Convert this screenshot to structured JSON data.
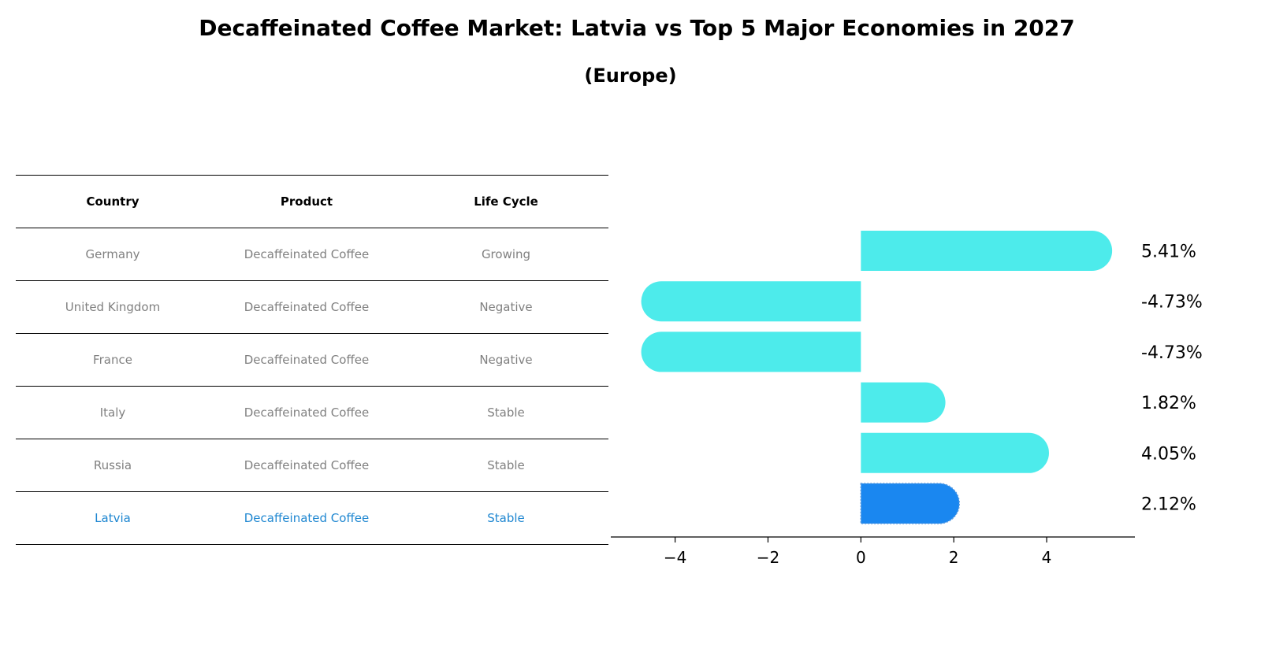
{
  "title": "Decaffeinated Coffee Market: Latvia vs Top 5 Major Economies in 2027",
  "subtitle": "(Europe)",
  "table": {
    "headers": [
      "Country",
      "Product",
      "Life Cycle"
    ],
    "rows": [
      [
        "Germany",
        "Decaffeinated Coffee",
        "Growing"
      ],
      [
        "United Kingdom",
        "Decaffeinated Coffee",
        "Negative"
      ],
      [
        "France",
        "Decaffeinated Coffee",
        "Negative"
      ],
      [
        "Italy",
        "Decaffeinated Coffee",
        "Stable"
      ],
      [
        "Russia",
        "Decaffeinated Coffee",
        "Stable"
      ],
      [
        "Latvia",
        "Decaffeinated Coffee",
        "Stable"
      ]
    ],
    "highlight_row": 5,
    "text_color": "#808080",
    "highlight_color": "#1f87d1"
  },
  "chart_data": {
    "type": "bar",
    "orientation": "horizontal",
    "categories": [
      "Germany",
      "United Kingdom",
      "France",
      "Italy",
      "Russia",
      "Latvia"
    ],
    "values": [
      5.41,
      -4.73,
      -4.73,
      1.82,
      4.05,
      2.12
    ],
    "labels": [
      "5.41%",
      "-4.73%",
      "-4.73%",
      "1.82%",
      "4.05%",
      "2.12%"
    ],
    "highlight_index": 5,
    "colors": {
      "default": "#4debeb",
      "highlight": "#1a87f0"
    },
    "xlim": [
      -5.3,
      5.9
    ],
    "xticks": [
      -4,
      -2,
      0,
      2,
      4
    ],
    "xtick_labels": [
      "−4",
      "−2",
      "0",
      "2",
      "4"
    ],
    "grid": false
  }
}
